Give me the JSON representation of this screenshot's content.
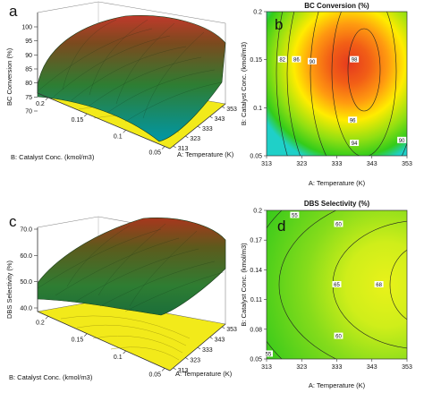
{
  "panels": {
    "a": {
      "letter": "a"
    },
    "b": {
      "letter": "b"
    },
    "c": {
      "letter": "c"
    },
    "d": {
      "letter": "d"
    }
  },
  "chart_data": [
    {
      "id": "a",
      "type": "surface",
      "z_label": "BC Conversion (%)",
      "x_label": "B: Catalyst Conc. (kmol/m3)",
      "y_label": "A: Temperature (K)",
      "z_ticks": [
        "70",
        "75",
        "80",
        "85",
        "90",
        "95",
        "100"
      ],
      "x_ticks": [
        "0.2",
        "0.15",
        "0.1",
        "0.05"
      ],
      "y_ticks": [
        "313",
        "323",
        "333",
        "343",
        "353"
      ],
      "zlim": [
        70,
        100
      ],
      "surface_range": [
        75,
        98
      ],
      "colors": {
        "high": "#c0392b",
        "mid": "#2e7d32",
        "low": "#0097a7",
        "floor": "#f2ea1a"
      }
    },
    {
      "id": "b",
      "type": "contour",
      "title": "BC Conversion (%)",
      "xlabel": "A: Temperature (K)",
      "ylabel": "B: Catalyst Conc. (kmol/m3)",
      "x_ticks": [
        "313",
        "323",
        "333",
        "343",
        "353"
      ],
      "y_ticks": [
        "0.05",
        "0.1",
        "0.15",
        "0.2"
      ],
      "xlim": [
        313,
        353
      ],
      "ylim": [
        0.05,
        0.2
      ],
      "contour_labels": [
        {
          "text": "82",
          "x": 317.5,
          "y": 0.15
        },
        {
          "text": "86",
          "x": 321.5,
          "y": 0.15
        },
        {
          "text": "90",
          "x": 326,
          "y": 0.148
        },
        {
          "text": "98",
          "x": 338,
          "y": 0.15
        },
        {
          "text": "96",
          "x": 337.5,
          "y": 0.087
        },
        {
          "text": "94",
          "x": 338,
          "y": 0.063
        },
        {
          "text": "90",
          "x": 351.5,
          "y": 0.066
        }
      ],
      "colors": {
        "center": "#e53a1e",
        "orange": "#ff9a10",
        "yellow": "#ffec00",
        "green": "#33cc1a",
        "cyan": "#1fd0c8"
      }
    },
    {
      "id": "c",
      "type": "surface",
      "z_label": "DBS Selectivity (%)",
      "x_label": "B: Catalyst Conc. (kmol/m3)",
      "y_label": "A: Temperature (K)",
      "z_ticks": [
        "40.0",
        "50.0",
        "60.0",
        "70.0"
      ],
      "x_ticks": [
        "0.2",
        "0.15",
        "0.1",
        "0.05"
      ],
      "y_ticks": [
        "313",
        "323",
        "333",
        "343",
        "353"
      ],
      "zlim": [
        40,
        70
      ],
      "surface_range": [
        50,
        69
      ],
      "colors": {
        "high": "#a8361d",
        "mid": "#2e7d32",
        "low": "#1b6e3a",
        "floor": "#f2ea1a"
      }
    },
    {
      "id": "d",
      "type": "contour",
      "title": "DBS Selectivity (%)",
      "xlabel": "A: Temperature (K)",
      "ylabel": "B: Catalyst Conc. (kmol/m3)",
      "x_ticks": [
        "313",
        "323",
        "333",
        "343",
        "353"
      ],
      "y_ticks": [
        "0.05",
        "0.08",
        "0.11",
        "0.14",
        "0.17",
        "0.2"
      ],
      "xlim": [
        313,
        353
      ],
      "ylim": [
        0.05,
        0.2
      ],
      "contour_labels": [
        {
          "text": "55",
          "x": 321,
          "y": 0.195
        },
        {
          "text": "60",
          "x": 333.5,
          "y": 0.186
        },
        {
          "text": "65",
          "x": 333,
          "y": 0.125
        },
        {
          "text": "68",
          "x": 345,
          "y": 0.125
        },
        {
          "text": "60",
          "x": 333.5,
          "y": 0.073
        },
        {
          "text": "55",
          "x": 313.5,
          "y": 0.055
        }
      ],
      "colors": {
        "center": "#e9f21a",
        "mid": "#b8e61c",
        "outer": "#4ccf1b"
      }
    }
  ]
}
